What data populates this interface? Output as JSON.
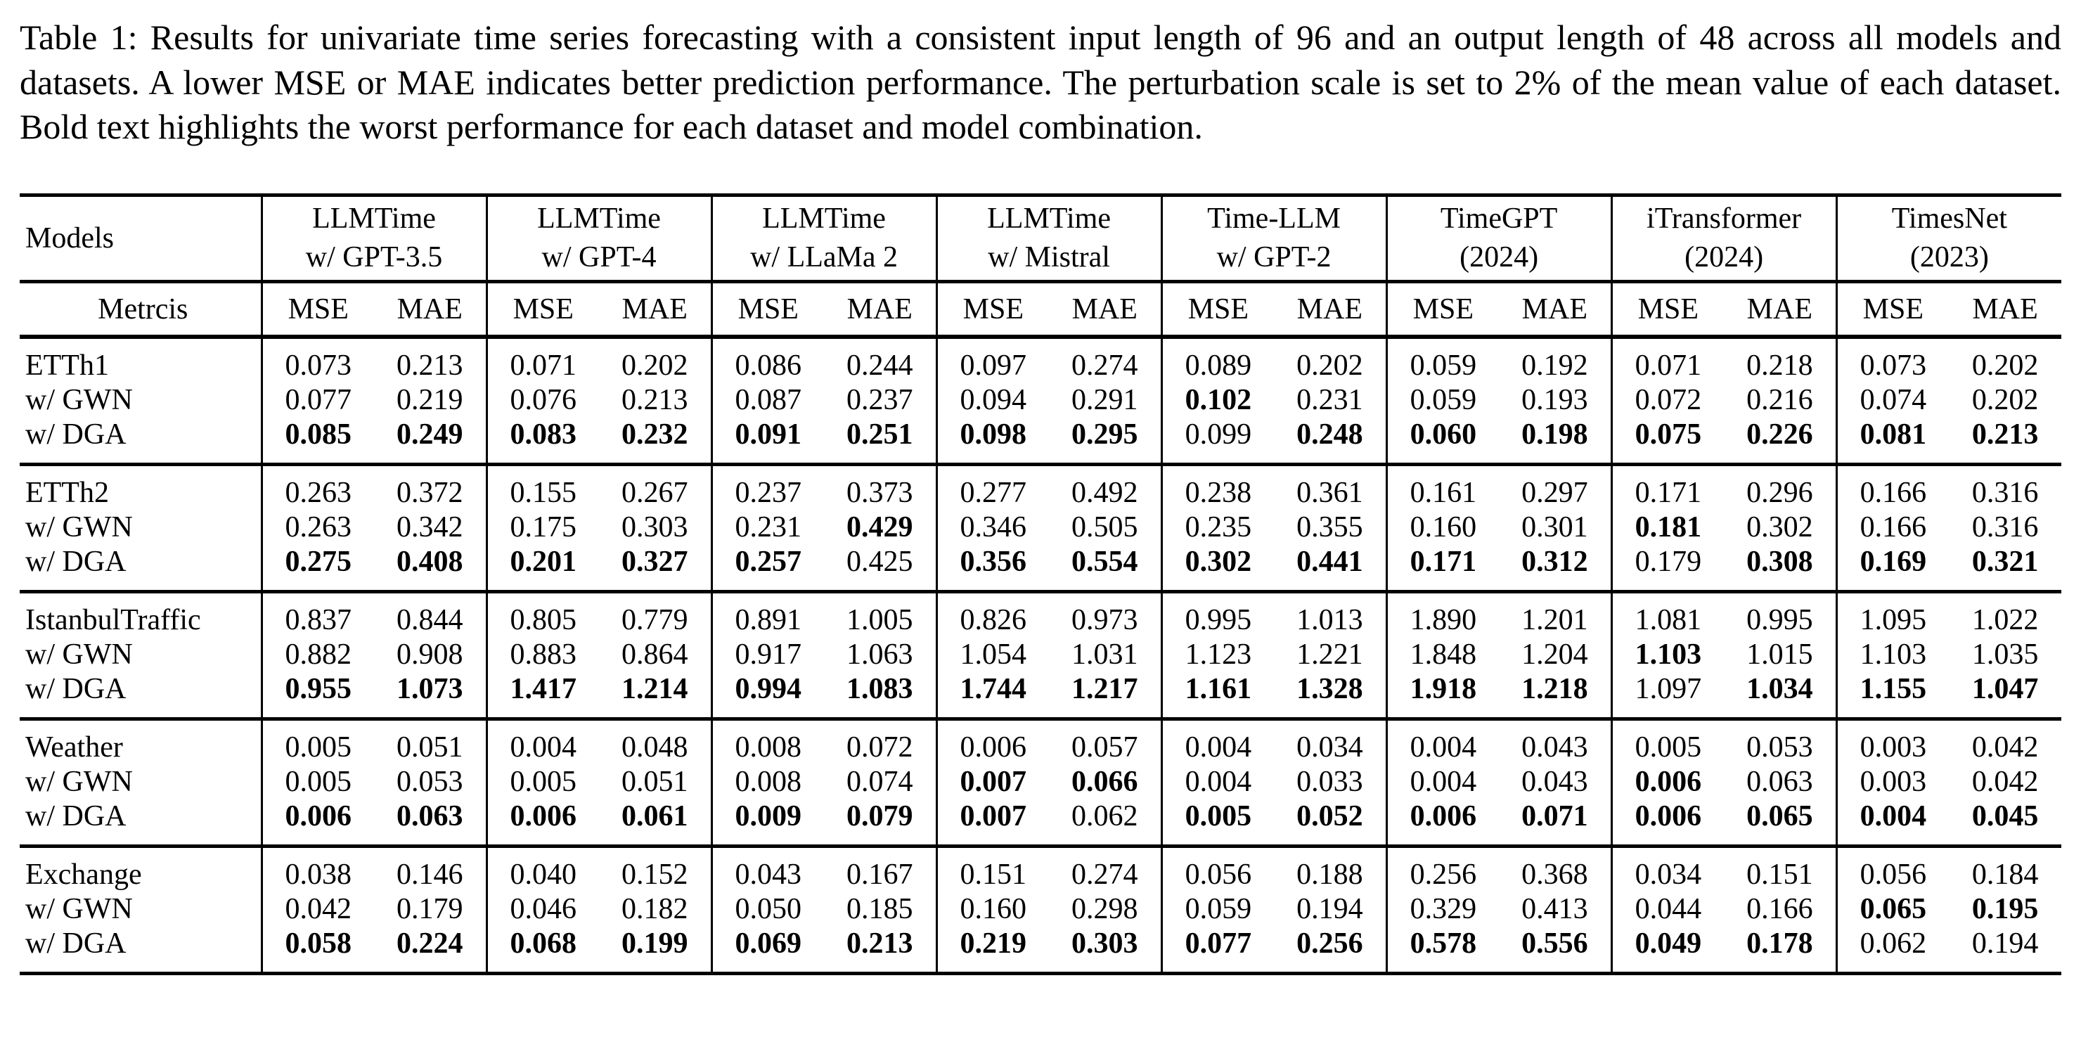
{
  "colors": {
    "ink": "#000000",
    "background": "#ffffff"
  },
  "caption": {
    "full": "Table 1: Results for univariate time series forecasting with a consistent input length of 96 and an output length of 48 across all models and datasets.  A lower MSE or MAE indicates better prediction performance.  The perturbation scale is set to 2% of the mean value of each dataset.  Bold text highlights the worst performance for each dataset and model combination."
  },
  "table": {
    "header": {
      "models_label": "Models",
      "metrics_label": "Metrcis",
      "metric_labels": [
        "MSE",
        "MAE"
      ],
      "model_columns": [
        {
          "line1": "LLMTime",
          "line2": "w/ GPT-3.5"
        },
        {
          "line1": "LLMTime",
          "line2": "w/ GPT-4"
        },
        {
          "line1": "LLMTime",
          "line2": "w/ LLaMa 2"
        },
        {
          "line1": "LLMTime",
          "line2": "w/ Mistral"
        },
        {
          "line1": "Time-LLM",
          "line2": "w/ GPT-2"
        },
        {
          "line1": "TimeGPT",
          "line2": "(2024)"
        },
        {
          "line1": "iTransformer",
          "line2": "(2024)"
        },
        {
          "line1": "TimesNet",
          "line2": "(2023)"
        }
      ]
    },
    "groups": [
      {
        "name": "ETTh1",
        "rows": [
          {
            "label": "ETTh1",
            "values": [
              "0.073",
              "0.213",
              "0.071",
              "0.202",
              "0.086",
              "0.244",
              "0.097",
              "0.274",
              "0.089",
              "0.202",
              "0.059",
              "0.192",
              "0.071",
              "0.218",
              "0.073",
              "0.202"
            ],
            "bold": []
          },
          {
            "label": "w/ GWN",
            "values": [
              "0.077",
              "0.219",
              "0.076",
              "0.213",
              "0.087",
              "0.237",
              "0.094",
              "0.291",
              "0.102",
              "0.231",
              "0.059",
              "0.193",
              "0.072",
              "0.216",
              "0.074",
              "0.202"
            ],
            "bold": [
              8
            ]
          },
          {
            "label": "w/ DGA",
            "values": [
              "0.085",
              "0.249",
              "0.083",
              "0.232",
              "0.091",
              "0.251",
              "0.098",
              "0.295",
              "0.099",
              "0.248",
              "0.060",
              "0.198",
              "0.075",
              "0.226",
              "0.081",
              "0.213"
            ],
            "bold": [
              0,
              1,
              2,
              3,
              4,
              5,
              6,
              7,
              9,
              10,
              11,
              12,
              13,
              14,
              15
            ]
          }
        ]
      },
      {
        "name": "ETTh2",
        "rows": [
          {
            "label": "ETTh2",
            "values": [
              "0.263",
              "0.372",
              "0.155",
              "0.267",
              "0.237",
              "0.373",
              "0.277",
              "0.492",
              "0.238",
              "0.361",
              "0.161",
              "0.297",
              "0.171",
              "0.296",
              "0.166",
              "0.316"
            ],
            "bold": []
          },
          {
            "label": "w/ GWN",
            "values": [
              "0.263",
              "0.342",
              "0.175",
              "0.303",
              "0.231",
              "0.429",
              "0.346",
              "0.505",
              "0.235",
              "0.355",
              "0.160",
              "0.301",
              "0.181",
              "0.302",
              "0.166",
              "0.316"
            ],
            "bold": [
              5,
              12
            ]
          },
          {
            "label": "w/ DGA",
            "values": [
              "0.275",
              "0.408",
              "0.201",
              "0.327",
              "0.257",
              "0.425",
              "0.356",
              "0.554",
              "0.302",
              "0.441",
              "0.171",
              "0.312",
              "0.179",
              "0.308",
              "0.169",
              "0.321"
            ],
            "bold": [
              0,
              1,
              2,
              3,
              4,
              6,
              7,
              8,
              9,
              10,
              11,
              13,
              14,
              15
            ]
          }
        ]
      },
      {
        "name": "IstanbulTraffic",
        "rows": [
          {
            "label": "IstanbulTraffic",
            "values": [
              "0.837",
              "0.844",
              "0.805",
              "0.779",
              "0.891",
              "1.005",
              "0.826",
              "0.973",
              "0.995",
              "1.013",
              "1.890",
              "1.201",
              "1.081",
              "0.995",
              "1.095",
              "1.022"
            ],
            "bold": []
          },
          {
            "label": "w/ GWN",
            "values": [
              "0.882",
              "0.908",
              "0.883",
              "0.864",
              "0.917",
              "1.063",
              "1.054",
              "1.031",
              "1.123",
              "1.221",
              "1.848",
              "1.204",
              "1.103",
              "1.015",
              "1.103",
              "1.035"
            ],
            "bold": [
              12
            ]
          },
          {
            "label": "w/ DGA",
            "values": [
              "0.955",
              "1.073",
              "1.417",
              "1.214",
              "0.994",
              "1.083",
              "1.744",
              "1.217",
              "1.161",
              "1.328",
              "1.918",
              "1.218",
              "1.097",
              "1.034",
              "1.155",
              "1.047"
            ],
            "bold": [
              0,
              1,
              2,
              3,
              4,
              5,
              6,
              7,
              8,
              9,
              10,
              11,
              13,
              14,
              15
            ]
          }
        ]
      },
      {
        "name": "Weather",
        "rows": [
          {
            "label": "Weather",
            "values": [
              "0.005",
              "0.051",
              "0.004",
              "0.048",
              "0.008",
              "0.072",
              "0.006",
              "0.057",
              "0.004",
              "0.034",
              "0.004",
              "0.043",
              "0.005",
              "0.053",
              "0.003",
              "0.042"
            ],
            "bold": []
          },
          {
            "label": "w/ GWN",
            "values": [
              "0.005",
              "0.053",
              "0.005",
              "0.051",
              "0.008",
              "0.074",
              "0.007",
              "0.066",
              "0.004",
              "0.033",
              "0.004",
              "0.043",
              "0.006",
              "0.063",
              "0.003",
              "0.042"
            ],
            "bold": [
              6,
              7,
              12
            ]
          },
          {
            "label": "w/ DGA",
            "values": [
              "0.006",
              "0.063",
              "0.006",
              "0.061",
              "0.009",
              "0.079",
              "0.007",
              "0.062",
              "0.005",
              "0.052",
              "0.006",
              "0.071",
              "0.006",
              "0.065",
              "0.004",
              "0.045"
            ],
            "bold": [
              0,
              1,
              2,
              3,
              4,
              5,
              6,
              8,
              9,
              10,
              11,
              12,
              13,
              14,
              15
            ]
          }
        ]
      },
      {
        "name": "Exchange",
        "rows": [
          {
            "label": "Exchange",
            "values": [
              "0.038",
              "0.146",
              "0.040",
              "0.152",
              "0.043",
              "0.167",
              "0.151",
              "0.274",
              "0.056",
              "0.188",
              "0.256",
              "0.368",
              "0.034",
              "0.151",
              "0.056",
              "0.184"
            ],
            "bold": []
          },
          {
            "label": "w/ GWN",
            "values": [
              "0.042",
              "0.179",
              "0.046",
              "0.182",
              "0.050",
              "0.185",
              "0.160",
              "0.298",
              "0.059",
              "0.194",
              "0.329",
              "0.413",
              "0.044",
              "0.166",
              "0.065",
              "0.195"
            ],
            "bold": [
              14,
              15
            ]
          },
          {
            "label": "w/ DGA",
            "values": [
              "0.058",
              "0.224",
              "0.068",
              "0.199",
              "0.069",
              "0.213",
              "0.219",
              "0.303",
              "0.077",
              "0.256",
              "0.578",
              "0.556",
              "0.049",
              "0.178",
              "0.062",
              "0.194"
            ],
            "bold": [
              0,
              1,
              2,
              3,
              4,
              5,
              6,
              7,
              8,
              9,
              10,
              11,
              12,
              13
            ]
          }
        ]
      }
    ]
  }
}
